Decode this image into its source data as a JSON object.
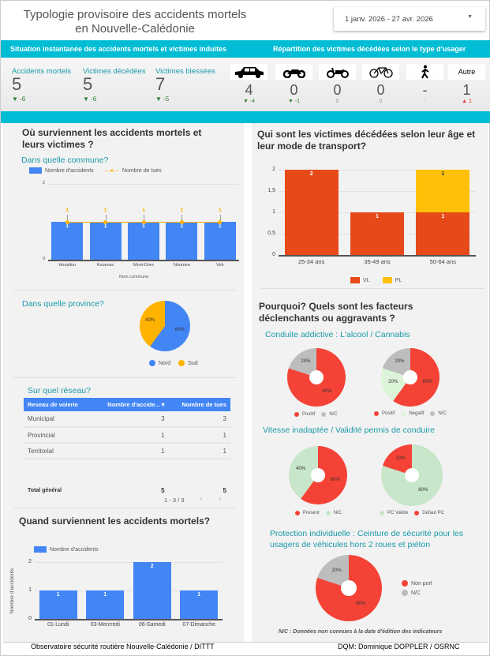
{
  "header": {
    "title_line1": "Typologie provisoire des accidents mortels",
    "title_line2": "en Nouvelle-Calédonie",
    "date_range": "1 janv. 2026 - 27 avr. 2026"
  },
  "band": {
    "left": "Situation instantanée des accidents mortels et victimes induites",
    "right": "Répartition des victimes décédées selon le type d'usager"
  },
  "kpis": [
    {
      "label": "Accidents mortels",
      "value": "5",
      "delta": "-6"
    },
    {
      "label": "Victimes décédées",
      "value": "5",
      "delta": "-6"
    },
    {
      "label": "Victimes blessées",
      "value": "7",
      "delta": "-5"
    }
  ],
  "usagers": [
    {
      "icon": "car-icon",
      "value": "4",
      "delta": "-4",
      "trend": "down"
    },
    {
      "icon": "motorcycle-icon",
      "value": "0",
      "delta": "-1",
      "trend": "down"
    },
    {
      "icon": "scooter-icon",
      "value": "0",
      "delta": "0",
      "trend": "none"
    },
    {
      "icon": "bicycle-icon",
      "value": "0",
      "delta": "0",
      "trend": "none"
    },
    {
      "icon": "pedestrian-icon",
      "value": "-",
      "delta": "-",
      "trend": "none"
    },
    {
      "label": "Autre",
      "value": "1",
      "delta": "1",
      "trend": "up"
    }
  ],
  "where": {
    "title": "Où surviennent les accidents mortels et leurs victimes ?",
    "commune_title": "Dans quelle commune?",
    "province_title": "Dans quelle province?",
    "network_title": "Sur quel réseau?"
  },
  "chart_data": [
    {
      "id": "commune",
      "type": "bar",
      "categories": [
        "Houailou",
        "Kouenac",
        "Mont-Dore",
        "Noumea",
        "Voh"
      ],
      "series": [
        {
          "name": "Nombre d'accidents",
          "values": [
            1,
            1,
            1,
            1,
            1
          ]
        },
        {
          "name": "Nombre de tués",
          "values": [
            1,
            1,
            1,
            1,
            1
          ]
        }
      ],
      "xlabel": "Nom commune",
      "ylim": [
        0,
        2
      ],
      "yticks": [
        "0",
        "2"
      ]
    },
    {
      "id": "province",
      "type": "pie",
      "labels": [
        "Nord",
        "Sud"
      ],
      "values": [
        60,
        40
      ],
      "value_labels": [
        "60%",
        "40%"
      ]
    },
    {
      "id": "age",
      "type": "bar",
      "stacked": true,
      "categories": [
        "25-34 ans",
        "35-49 ans",
        "50-64 ans"
      ],
      "series": [
        {
          "name": "VL",
          "values": [
            2,
            1,
            1
          ]
        },
        {
          "name": "PL",
          "values": [
            0,
            0,
            1
          ]
        }
      ],
      "ylim": [
        0,
        2
      ],
      "yticks": [
        "0",
        "0,5",
        "1",
        "1,5",
        "2"
      ]
    },
    {
      "id": "weekday",
      "type": "bar",
      "categories": [
        "01-Lundi",
        "03-Mercredi",
        "06-Samedi",
        "07-Dimanche"
      ],
      "series": [
        {
          "name": "Nombre d'accidents",
          "values": [
            1,
            1,
            2,
            1
          ]
        }
      ],
      "ylabel": "Nombre d'accidents",
      "ylim": [
        0,
        2
      ],
      "yticks": [
        "0",
        "1",
        "2"
      ]
    },
    {
      "id": "alcool",
      "type": "pie",
      "labels": [
        "Positif",
        "N/C"
      ],
      "values": [
        80,
        20
      ],
      "value_labels": [
        "80%",
        "20%"
      ]
    },
    {
      "id": "cannabis",
      "type": "pie",
      "labels": [
        "Positif",
        "Negatif",
        "N/C"
      ],
      "values": [
        60,
        20,
        20
      ],
      "value_labels": [
        "60%",
        "20%",
        "20%"
      ]
    },
    {
      "id": "vitesse",
      "type": "pie",
      "labels": [
        "Present",
        "N/C"
      ],
      "values": [
        60,
        40
      ],
      "value_labels": [
        "60%",
        "40%"
      ]
    },
    {
      "id": "permis",
      "type": "pie",
      "labels": [
        "PC Valide",
        "Defaut PC"
      ],
      "values": [
        80,
        20
      ],
      "value_labels": [
        "80%",
        "20%"
      ]
    },
    {
      "id": "ceinture",
      "type": "pie",
      "labels": [
        "Non port",
        "N/C"
      ],
      "values": [
        80,
        20
      ],
      "value_labels": [
        "80%",
        "20%"
      ]
    }
  ],
  "network_table": {
    "headers": [
      "Reseau de voierie",
      "Nombre d'accide...",
      "Nombre de tues"
    ],
    "rows": [
      [
        "Municipal",
        "3",
        "3"
      ],
      [
        "Provincial",
        "1",
        "1"
      ],
      [
        "Territorial",
        "1",
        "1"
      ]
    ],
    "total": [
      "Total général",
      "5",
      "5"
    ],
    "pagination": "1 - 3 / 3"
  },
  "when": {
    "title": "Quand surviennent les accidents mortels?"
  },
  "who": {
    "title": "Qui sont les victimes décédées selon leur âge et leur mode de transport?"
  },
  "why": {
    "title": "Pourquoi? Quels sont les facteurs déclenchants ou aggravants ?",
    "addictive_title": "Conduite addictive : L'alcool / Cannabis",
    "speed_title": "Vitesse inadaptée / Validité permis de conduire",
    "protection_title": "Protection individuelle : Ceinture de sécurité pour les usagers de véhicules hors 2 roues et piéton",
    "note": "N/C : Données non connues à la date d'édition des indicateurs"
  },
  "footer": {
    "left": "Observatoire sécurité routière Nouvelle-Calédonie / DITTT",
    "right": "DQM: Dominique DOPPLER / OSRNC"
  },
  "colors": {
    "cyan": "#00bcd4",
    "blue": "#4285f4",
    "orange": "#ffb300",
    "red": "#f44336",
    "vl": "#e64a19",
    "pl": "#ffc107",
    "gray": "#bdbdbd",
    "lightgreen": "#c8e6c9"
  }
}
